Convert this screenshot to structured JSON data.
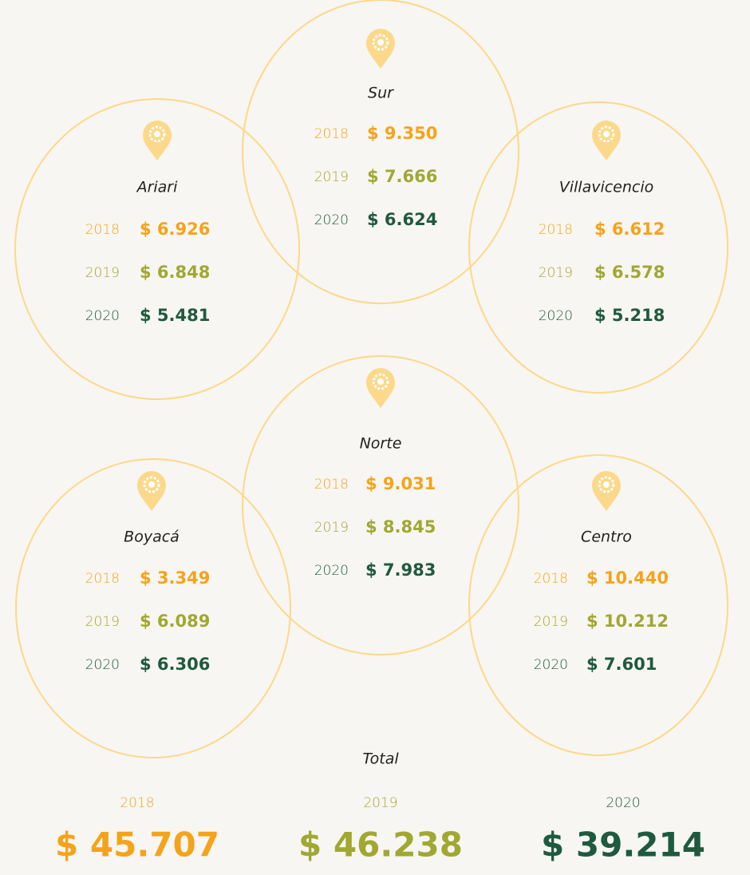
{
  "regions": [
    {
      "name": "Sur",
      "rows": [
        {
          "year": "2018",
          "amount": "$ 9.350"
        },
        {
          "year": "2019",
          "amount": "$ 7.666"
        },
        {
          "year": "2020",
          "amount": "$ 6.624"
        }
      ]
    },
    {
      "name": "Ariari",
      "rows": [
        {
          "year": "2018",
          "amount": "$ 6.926"
        },
        {
          "year": "2019",
          "amount": "$ 6.848"
        },
        {
          "year": "2020",
          "amount": "$ 5.481"
        }
      ]
    },
    {
      "name": "Villavicencio",
      "rows": [
        {
          "year": "2018",
          "amount": "$ 6.612"
        },
        {
          "year": "2019",
          "amount": "$ 6.578"
        },
        {
          "year": "2020",
          "amount": "$ 5.218"
        }
      ]
    },
    {
      "name": "Norte",
      "rows": [
        {
          "year": "2018",
          "amount": "$ 9.031"
        },
        {
          "year": "2019",
          "amount": "$ 8.845"
        },
        {
          "year": "2020",
          "amount": "$ 7.983"
        }
      ]
    },
    {
      "name": "Boyacá",
      "rows": [
        {
          "year": "2018",
          "amount": "$ 3.349"
        },
        {
          "year": "2019",
          "amount": "$ 6.089"
        },
        {
          "year": "2020",
          "amount": "$ 6.306"
        }
      ]
    },
    {
      "name": "Centro",
      "rows": [
        {
          "year": "2018",
          "amount": "$ 10.440"
        },
        {
          "year": "2019",
          "amount": "$ 10.212"
        },
        {
          "year": "2020",
          "amount": "$ 7.601"
        }
      ]
    }
  ],
  "total": {
    "title": "Total",
    "rows": [
      {
        "year": "2018",
        "amount": "$ 45.707"
      },
      {
        "year": "2019",
        "amount": "$ 46.238"
      },
      {
        "year": "2020",
        "amount": "$ 39.214"
      }
    ]
  }
}
